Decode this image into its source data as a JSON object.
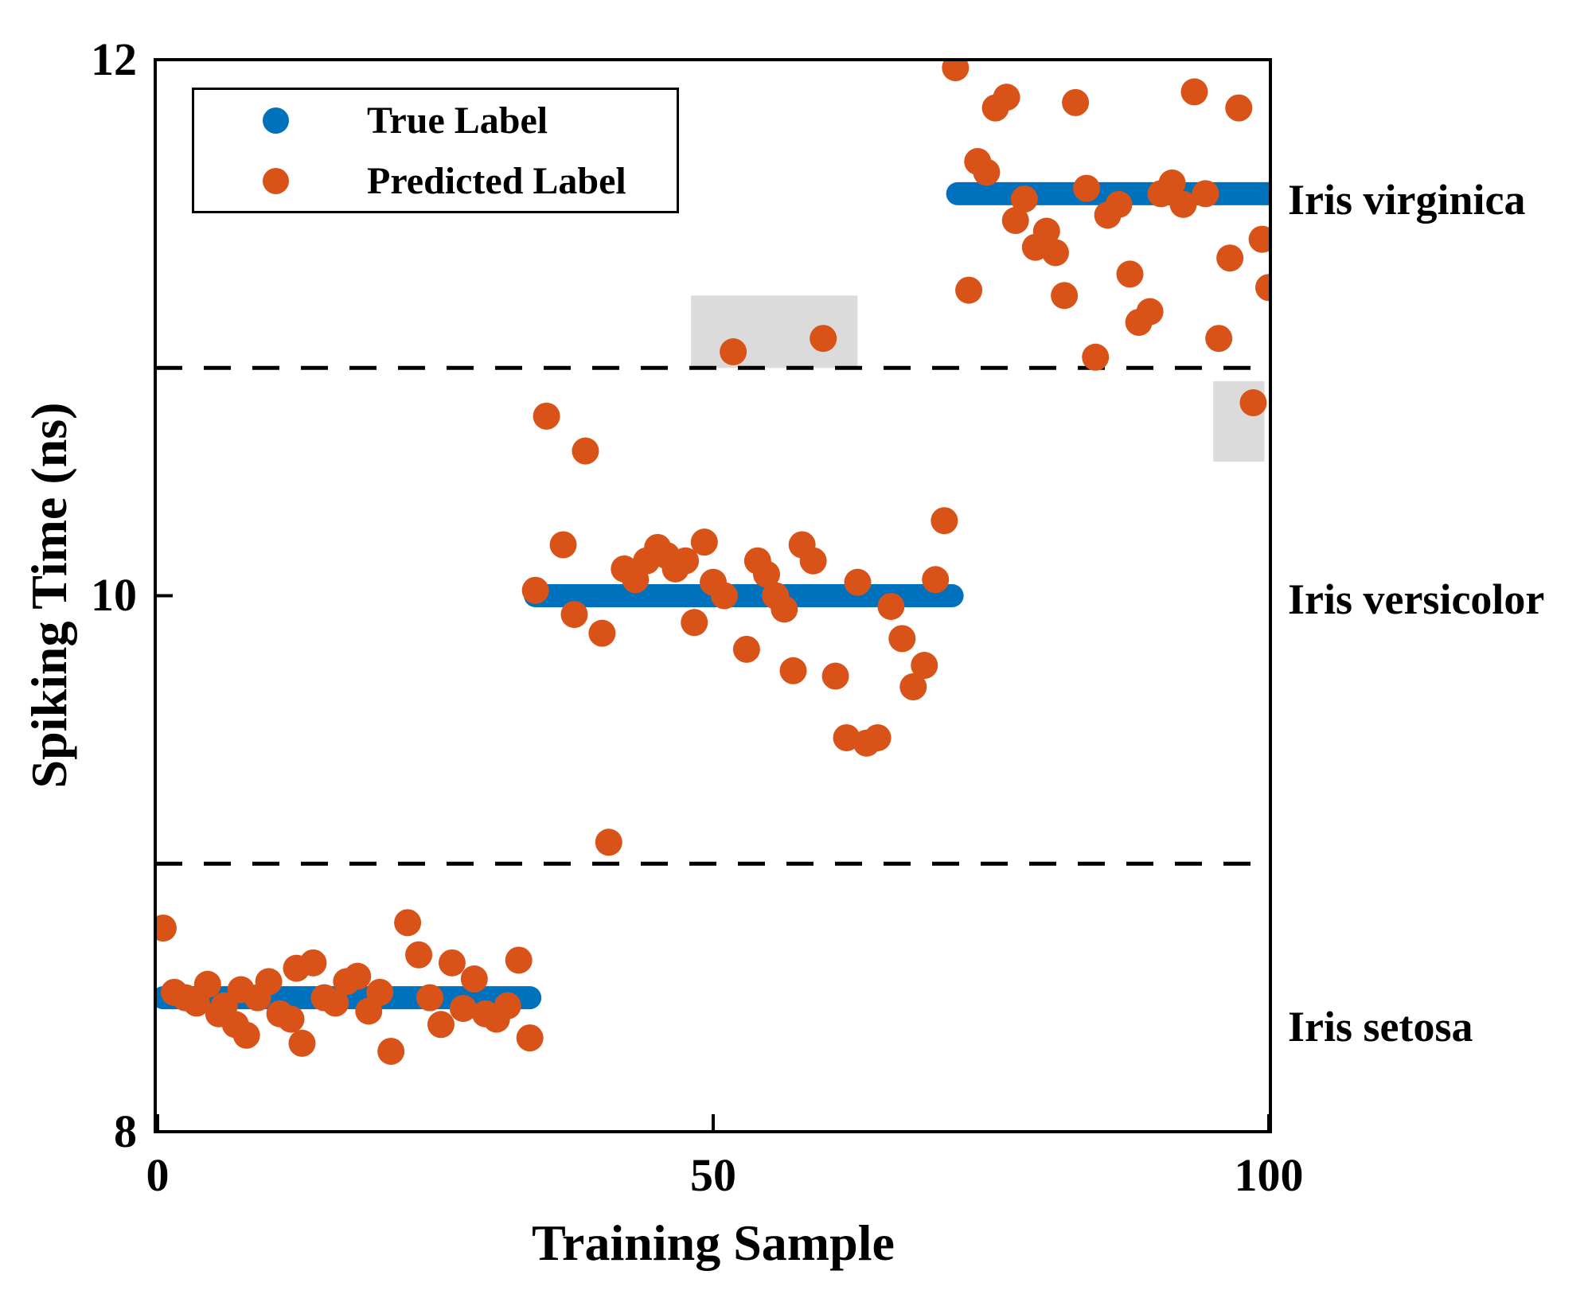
{
  "chart_data": {
    "type": "scatter",
    "title": "",
    "xlabel": "Training Sample",
    "ylabel": "Spiking Time (ns)",
    "xlim": [
      0,
      100
    ],
    "ylim": [
      8,
      12
    ],
    "xtick_values": [
      0,
      50,
      100
    ],
    "ytick_values": [
      8,
      10,
      12
    ],
    "xtick_labels": [
      "0",
      "50",
      "100"
    ],
    "ytick_labels_top_to_bottom": [
      "12",
      "10",
      "8"
    ],
    "grid": false,
    "legend_position": "top-left",
    "colors": {
      "true_label": "#0072BD",
      "predicted_label": "#D95319",
      "highlight": "#DBDBDB",
      "boundary": "#000000"
    },
    "legend": [
      {
        "label": "True Label",
        "color": "#0072BD"
      },
      {
        "label": "Predicted Label",
        "color": "#D95319"
      }
    ],
    "class_labels": [
      {
        "text": "Iris virginica",
        "y": 11.5
      },
      {
        "text": "Iris versicolor",
        "y": 10.0
      },
      {
        "text": "Iris setosa",
        "y": 8.5
      }
    ],
    "decision_boundaries_y": [
      10.85,
      9.0
    ],
    "highlight_boxes": [
      {
        "x_min": 48,
        "x_max": 63,
        "y_min": 10.85,
        "y_max": 11.12
      },
      {
        "x_min": 95,
        "x_max": 99.6,
        "y_min": 10.5,
        "y_max": 10.8
      }
    ],
    "series": [
      {
        "name": "True Label",
        "color": "#0072BD",
        "style": "thick-line-of-dots",
        "segments": [
          {
            "x_start": 0.5,
            "x_end": 33.5,
            "y": 8.5,
            "class": "Iris setosa"
          },
          {
            "x_start": 34,
            "x_end": 71.5,
            "y": 10.0,
            "class": "Iris versicolor"
          },
          {
            "x_start": 72,
            "x_end": 100,
            "y": 11.5,
            "class": "Iris virginica"
          }
        ]
      },
      {
        "name": "Predicted Label",
        "color": "#D95319",
        "style": "scatter",
        "points": [
          [
            0.5,
            8.76
          ],
          [
            1.5,
            8.52
          ],
          [
            2.5,
            8.5
          ],
          [
            3.5,
            8.48
          ],
          [
            4.5,
            8.55
          ],
          [
            5.5,
            8.44
          ],
          [
            6.0,
            8.47
          ],
          [
            7.0,
            8.4
          ],
          [
            7.5,
            8.53
          ],
          [
            8.0,
            8.36
          ],
          [
            9.0,
            8.5
          ],
          [
            10.0,
            8.56
          ],
          [
            11.0,
            8.44
          ],
          [
            12.0,
            8.42
          ],
          [
            12.5,
            8.61
          ],
          [
            13.0,
            8.33
          ],
          [
            14.0,
            8.63
          ],
          [
            15.0,
            8.5
          ],
          [
            16.0,
            8.48
          ],
          [
            17.0,
            8.56
          ],
          [
            18.0,
            8.58
          ],
          [
            19.0,
            8.45
          ],
          [
            20.0,
            8.52
          ],
          [
            21.0,
            8.3
          ],
          [
            22.5,
            8.78
          ],
          [
            23.5,
            8.66
          ],
          [
            24.5,
            8.5
          ],
          [
            25.5,
            8.4
          ],
          [
            26.5,
            8.63
          ],
          [
            27.5,
            8.46
          ],
          [
            28.5,
            8.57
          ],
          [
            29.5,
            8.44
          ],
          [
            30.5,
            8.42
          ],
          [
            31.5,
            8.47
          ],
          [
            32.5,
            8.64
          ],
          [
            33.5,
            8.35
          ],
          [
            34,
            10.02
          ],
          [
            35,
            10.67
          ],
          [
            36.5,
            10.19
          ],
          [
            37.5,
            9.93
          ],
          [
            38.5,
            10.54
          ],
          [
            40,
            9.86
          ],
          [
            40.6,
            9.08
          ],
          [
            42,
            10.1
          ],
          [
            43,
            10.06
          ],
          [
            44,
            10.13
          ],
          [
            45,
            10.18
          ],
          [
            45.8,
            10.15
          ],
          [
            46.6,
            10.1
          ],
          [
            47.5,
            10.13
          ],
          [
            48.3,
            9.9
          ],
          [
            49.2,
            10.2
          ],
          [
            50,
            10.05
          ],
          [
            51,
            10.0
          ],
          [
            51.8,
            10.91
          ],
          [
            53,
            9.8
          ],
          [
            54,
            10.13
          ],
          [
            54.8,
            10.08
          ],
          [
            55.6,
            10.0
          ],
          [
            56.4,
            9.95
          ],
          [
            57.2,
            9.72
          ],
          [
            58,
            10.19
          ],
          [
            59,
            10.13
          ],
          [
            59.9,
            10.96
          ],
          [
            61,
            9.7
          ],
          [
            62,
            9.47
          ],
          [
            63,
            10.05
          ],
          [
            63.8,
            9.45
          ],
          [
            64.8,
            9.47
          ],
          [
            66,
            9.96
          ],
          [
            67,
            9.84
          ],
          [
            68,
            9.66
          ],
          [
            69,
            9.74
          ],
          [
            70,
            10.06
          ],
          [
            70.8,
            10.28
          ],
          [
            71.8,
            11.97
          ],
          [
            73,
            11.14
          ],
          [
            73.8,
            11.62
          ],
          [
            74.6,
            11.58
          ],
          [
            75.4,
            11.82
          ],
          [
            76.4,
            11.86
          ],
          [
            77.2,
            11.4
          ],
          [
            78,
            11.48
          ],
          [
            79,
            11.3
          ],
          [
            80,
            11.36
          ],
          [
            80.8,
            11.28
          ],
          [
            81.6,
            11.12
          ],
          [
            82.6,
            11.84
          ],
          [
            83.6,
            11.52
          ],
          [
            84.4,
            10.89
          ],
          [
            85.5,
            11.42
          ],
          [
            86.5,
            11.46
          ],
          [
            87.5,
            11.2
          ],
          [
            88.3,
            11.02
          ],
          [
            89.3,
            11.06
          ],
          [
            90.3,
            11.5
          ],
          [
            91.3,
            11.54
          ],
          [
            92.3,
            11.46
          ],
          [
            93.3,
            11.88
          ],
          [
            94.3,
            11.5
          ],
          [
            95.5,
            10.96
          ],
          [
            96.5,
            11.26
          ],
          [
            97.3,
            11.82
          ],
          [
            98.6,
            10.72
          ],
          [
            99.4,
            11.33
          ],
          [
            100,
            11.15
          ]
        ]
      }
    ]
  }
}
